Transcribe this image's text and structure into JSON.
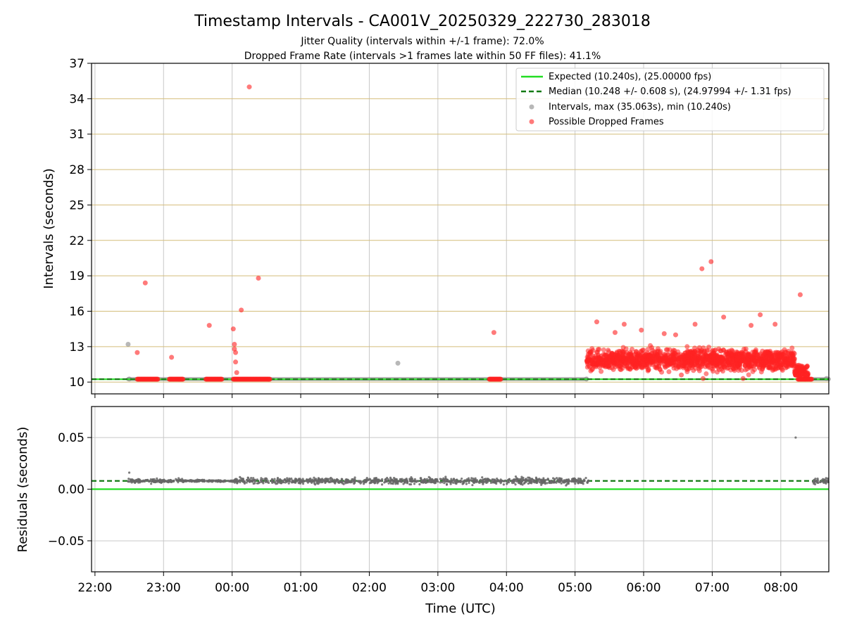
{
  "chart_data": [
    {
      "type": "scatter",
      "title": "Timestamp Intervals - CA001V_20250329_222730_283018",
      "subtitle_lines": [
        "Jitter Quality (intervals within +/-1 frame): 72.0%",
        "Dropped Frame Rate (intervals >1 frames late within 50 FF files): 41.1%"
      ],
      "xlabel": "",
      "ylabel": "Intervals (seconds)",
      "x_axis": "time_utc",
      "xlim": [
        "21:57",
        "08:42"
      ],
      "ylim": [
        9.0,
        37.0
      ],
      "yticks": [
        "10",
        "13",
        "16",
        "19",
        "22",
        "25",
        "28",
        "31",
        "34",
        "37"
      ],
      "grid": "on",
      "legend_position": "top-right",
      "reference_lines": [
        {
          "name": "Expected (10.240s), (25.00000 fps)",
          "y": 10.24,
          "style": "solid",
          "color": "#22dd22"
        },
        {
          "name": "Median (10.248 +/- 0.608 s), (24.97994 +/- 1.31 fps)",
          "y": 10.248,
          "style": "dashed",
          "color": "#137a13"
        }
      ],
      "series": [
        {
          "name": "Intervals, max (35.063s), min (10.240s)",
          "color": "#888888",
          "points": [
            [
              "22:29",
              13.2
            ],
            [
              "02:25",
              11.6
            ],
            [
              "22:30",
              10.26
            ],
            [
              "05:10",
              10.26
            ],
            [
              "08:40",
              10.3
            ]
          ],
          "bands": [
            {
              "from": "22:29",
              "to": "05:10",
              "y": 10.25
            },
            {
              "from": "08:28",
              "to": "08:42",
              "y": 10.25
            }
          ]
        },
        {
          "name": "Possible Dropped Frames",
          "color": "#ff2222",
          "points": [
            [
              "22:37",
              12.5
            ],
            [
              "22:44",
              18.4
            ],
            [
              "23:07",
              12.1
            ],
            [
              "23:40",
              14.8
            ],
            [
              "00:01",
              14.5
            ],
            [
              "00:02",
              13.2
            ],
            [
              "00:02",
              12.8
            ],
            [
              "00:03",
              12.5
            ],
            [
              "00:03",
              11.7
            ],
            [
              "00:04",
              10.8
            ],
            [
              "00:08",
              16.1
            ],
            [
              "00:15",
              35.0
            ],
            [
              "00:23",
              18.8
            ],
            [
              "03:49",
              14.2
            ],
            [
              "05:19",
              15.1
            ],
            [
              "05:35",
              14.2
            ],
            [
              "05:43",
              14.9
            ],
            [
              "05:58",
              14.4
            ],
            [
              "06:18",
              14.1
            ],
            [
              "06:28",
              14.0
            ],
            [
              "06:45",
              14.9
            ],
            [
              "06:51",
              19.6
            ],
            [
              "06:59",
              20.2
            ],
            [
              "07:10",
              15.5
            ],
            [
              "07:34",
              14.8
            ],
            [
              "07:42",
              15.7
            ],
            [
              "07:55",
              14.9
            ],
            [
              "08:17",
              17.4
            ],
            [
              "06:33",
              10.6
            ],
            [
              "06:52",
              10.3
            ],
            [
              "07:27",
              10.3
            ]
          ],
          "bands": [
            {
              "from": "22:37",
              "to": "22:55",
              "y": 10.24
            },
            {
              "from": "23:05",
              "to": "23:17",
              "y": 10.24
            },
            {
              "from": "23:37",
              "to": "23:51",
              "y": 10.24
            },
            {
              "from": "00:01",
              "to": "00:33",
              "y": 10.24
            },
            {
              "from": "03:45",
              "to": "03:55",
              "y": 10.24
            },
            {
              "from": "08:15",
              "to": "08:27",
              "y": 10.24
            }
          ],
          "clouds": [
            {
              "from": "05:10",
              "to": "08:24",
              "ymin": 10.6,
              "ymax": 14.2,
              "ycenter": 11.9
            }
          ]
        }
      ]
    },
    {
      "type": "scatter",
      "xlabel": "Time (UTC)",
      "ylabel": "Residuals (seconds)",
      "x_axis": "time_utc",
      "xlim": [
        "21:57",
        "08:42"
      ],
      "ylim": [
        -0.08,
        0.08
      ],
      "yticks": [
        "−0.05",
        "0.00",
        "0.05"
      ],
      "xticks": [
        "22:00",
        "23:00",
        "00:00",
        "01:00",
        "02:00",
        "03:00",
        "04:00",
        "05:00",
        "06:00",
        "07:00",
        "08:00"
      ],
      "grid": "on",
      "reference_lines": [
        {
          "y": 0.0,
          "style": "solid",
          "color": "#22dd22"
        },
        {
          "y": 0.008,
          "style": "dashed",
          "color": "#137a13"
        }
      ],
      "series": [
        {
          "color": "#666666",
          "points": [
            [
              "22:30",
              0.016
            ],
            [
              "08:13",
              0.05
            ]
          ],
          "bands": [
            {
              "from": "22:29",
              "to": "23:18",
              "ycenter": 0.008,
              "spread": 0.003
            },
            {
              "from": "23:18",
              "to": "00:02",
              "ycenter": 0.008,
              "spread": 0.0015
            },
            {
              "from": "00:02",
              "to": "05:12",
              "ycenter": 0.008,
              "spread": 0.005
            },
            {
              "from": "08:28",
              "to": "08:42",
              "ycenter": 0.008,
              "spread": 0.005
            }
          ]
        }
      ]
    }
  ]
}
